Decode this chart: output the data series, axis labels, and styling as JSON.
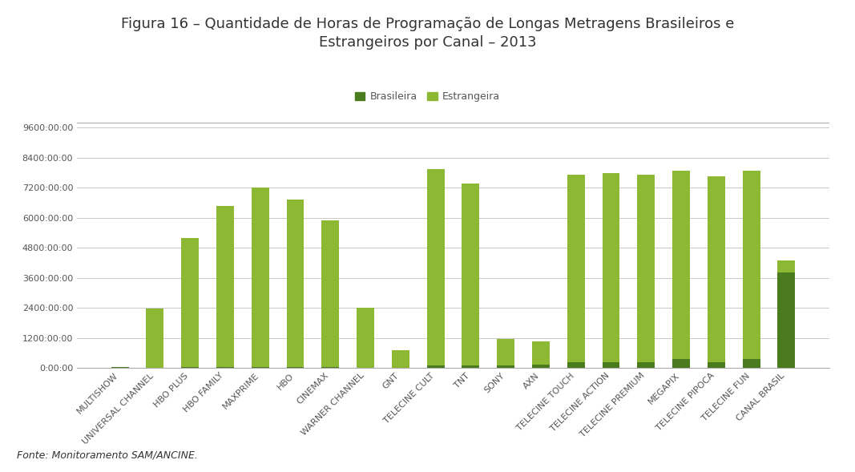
{
  "title_line1": "Figura 16 – Quantidade de Horas de Programação de Longas Metragens Brasileiros e",
  "title_line2": "Estrangeiros por Canal – 2013",
  "categories": [
    "MULTISHOW",
    "UNIVERSAL CHANNEL",
    "HBO PLUS",
    "HBO FAMILY",
    "MAXPRIME",
    "HBO",
    "CINEMAX",
    "WARNER CHANNEL",
    "GNT",
    "TELECINE CULT",
    "TNT",
    "SONY",
    "AXN",
    "TELECINE TOUCH",
    "TELECINE ACTION",
    "TELECINE PREMIUM",
    "MEGAPIX",
    "TELECINE PIPOCA",
    "TELECINE FUN",
    "CANAL BRASIL"
  ],
  "brasileira": [
    30,
    20,
    30,
    30,
    30,
    30,
    30,
    20,
    20,
    100,
    100,
    100,
    150,
    250,
    250,
    250,
    350,
    250,
    350,
    3820
  ],
  "estrangeira": [
    30,
    2360,
    5170,
    6460,
    7170,
    6690,
    5860,
    2380,
    700,
    7860,
    7270,
    1070,
    920,
    7480,
    7530,
    7480,
    7530,
    7420,
    7530,
    470
  ],
  "brasileira_color": "#4a7c1f",
  "estrangeira_color": "#8db834",
  "ytick_labels": [
    "0:00:00",
    "1200:00:00",
    "2400:00:00",
    "3600:00:00",
    "4800:00:00",
    "6000:00:00",
    "7200:00:00",
    "8400:00:00",
    "9600:00:00"
  ],
  "ytick_values": [
    0,
    1200,
    2400,
    3600,
    4800,
    6000,
    7200,
    8400,
    9600
  ],
  "ylim": [
    0,
    9800
  ],
  "legend_brasileira": "Brasileira",
  "legend_estrangeira": "Estrangeira",
  "footer": "Fonte: Monitoramento SAM/ANCINE.",
  "title_fontsize": 13,
  "tick_fontsize": 8,
  "legend_fontsize": 9,
  "footer_fontsize": 9,
  "background_color": "#ffffff",
  "grid_color": "#c8c8c8",
  "title_color": "#333333",
  "tick_color": "#555555",
  "border_color": "#aaaaaa"
}
